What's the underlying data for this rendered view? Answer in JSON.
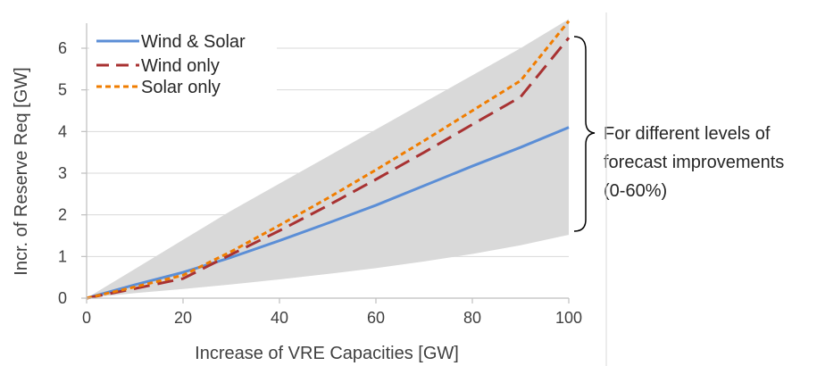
{
  "chart_data": {
    "type": "line",
    "xlabel": "Increase of VRE Capacities [GW]",
    "ylabel": "Incr. of Reserve Req [GW]",
    "xlim": [
      0,
      100
    ],
    "ylim": [
      0,
      6.6
    ],
    "xticks": [
      0,
      20,
      40,
      60,
      80,
      100
    ],
    "yticks": [
      0,
      1,
      2,
      3,
      4,
      5,
      6
    ],
    "grid": "horizontal",
    "legend_position": "top-left",
    "band": {
      "description_color": "#d9d9d9",
      "x": [
        0,
        10,
        20,
        30,
        40,
        50,
        60,
        70,
        80,
        90,
        100
      ],
      "lower": [
        0,
        0.12,
        0.22,
        0.33,
        0.45,
        0.58,
        0.72,
        0.88,
        1.06,
        1.27,
        1.52
      ],
      "upper": [
        0,
        0.7,
        1.4,
        2.1,
        2.75,
        3.4,
        4.05,
        4.7,
        5.35,
        6.0,
        6.7
      ]
    },
    "series": [
      {
        "name": "Wind & Solar",
        "style": "solid",
        "color": "#5b8ed6",
        "x": [
          0,
          10,
          20,
          30,
          40,
          50,
          60,
          70,
          80,
          90,
          100
        ],
        "y": [
          0,
          0.32,
          0.62,
          0.98,
          1.38,
          1.8,
          2.23,
          2.7,
          3.17,
          3.62,
          4.1
        ]
      },
      {
        "name": "Wind only",
        "style": "dash",
        "color": "#a83232",
        "x": [
          0,
          10,
          20,
          30,
          40,
          50,
          60,
          70,
          80,
          90,
          100
        ],
        "y": [
          0,
          0.23,
          0.47,
          1.05,
          1.62,
          2.22,
          2.85,
          3.5,
          4.17,
          4.83,
          6.25
        ]
      },
      {
        "name": "Solar only",
        "style": "dot",
        "color": "#f07d00",
        "x": [
          0,
          10,
          20,
          30,
          40,
          50,
          60,
          70,
          80,
          90,
          100
        ],
        "y": [
          0,
          0.27,
          0.55,
          1.12,
          1.75,
          2.4,
          3.08,
          3.78,
          4.5,
          5.22,
          6.65
        ]
      }
    ]
  },
  "annotation": {
    "lines": [
      "For different levels of",
      "forecast improvements",
      "(0-60%)"
    ]
  },
  "colors": {
    "grid": "#d9d9d9",
    "axis": "#bfbfbf",
    "text": "#404040",
    "brace": "#000000",
    "divider": "#d9d9d9"
  }
}
